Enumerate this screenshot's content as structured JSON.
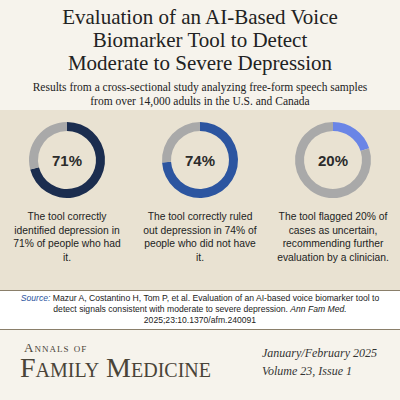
{
  "header": {
    "title": [
      "Evaluation of an AI-Based Voice",
      "Biomarker Tool to Detect",
      "Moderate to Severe Depression"
    ],
    "subtitle": [
      "Results from a cross-sectional study analyzing free-form speech samples",
      "from over 14,000 adults in the U.S. and Canada"
    ]
  },
  "chart_data": [
    {
      "type": "pie",
      "values": [
        71,
        29
      ],
      "value_labels": [
        "71%",
        null
      ],
      "colors": [
        "#1b2d4f",
        "#a9a9a9"
      ],
      "caption": "The tool correctly identified depression in 71% of people who had it."
    },
    {
      "type": "pie",
      "values": [
        74,
        26
      ],
      "value_labels": [
        "74%",
        null
      ],
      "colors": [
        "#2c55a0",
        "#a9a9a9"
      ],
      "caption": "The tool correctly ruled out depression in 74% of people who did not have it."
    },
    {
      "type": "pie",
      "values": [
        20,
        80
      ],
      "value_labels": [
        "20%",
        null
      ],
      "colors": [
        "#6a85e6",
        "#a9a9a9"
      ],
      "caption": "The tool flagged 20% of cases as uncertain, recommending further evaluation by a clinician."
    }
  ],
  "source": {
    "label": "Source:",
    "text": "Mazur A, Costantino H, Tom P, et al. Evaluation of an AI-based voice biomarker tool to detect signals consistent with moderate to severe depression.",
    "journal_abbrev": "Ann Fam Med.",
    "details": "2025;23:10.1370/afm.240091"
  },
  "footer": {
    "journal_top": "Annals of",
    "journal_name": "Family Medicine",
    "issue_date": "January/February 2025",
    "volume": "Volume 23, Issue 1"
  }
}
